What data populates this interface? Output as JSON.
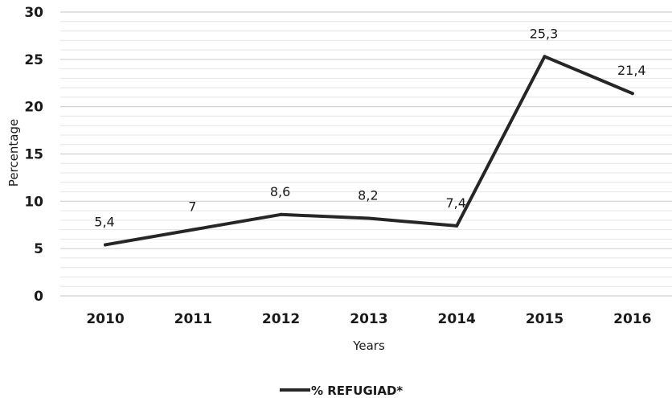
{
  "chart_data": {
    "type": "line",
    "categories": [
      "2010",
      "2011",
      "2012",
      "2013",
      "2014",
      "2015",
      "2016"
    ],
    "series": [
      {
        "name": "% REFUGIAD*",
        "values": [
          5.4,
          7,
          8.6,
          8.2,
          7.4,
          25.3,
          21.4
        ],
        "data_labels": [
          "5,4",
          "7",
          "8,6",
          "8,2",
          "7,4",
          "25,3",
          "21,4"
        ],
        "color": "#262626"
      }
    ],
    "xlabel": "Years",
    "ylabel": "Percentage",
    "ylim": [
      0,
      30
    ],
    "yticks": [
      "0",
      "5",
      "10",
      "15",
      "20",
      "25",
      "30"
    ],
    "grid": true,
    "legend_position": "bottom"
  }
}
